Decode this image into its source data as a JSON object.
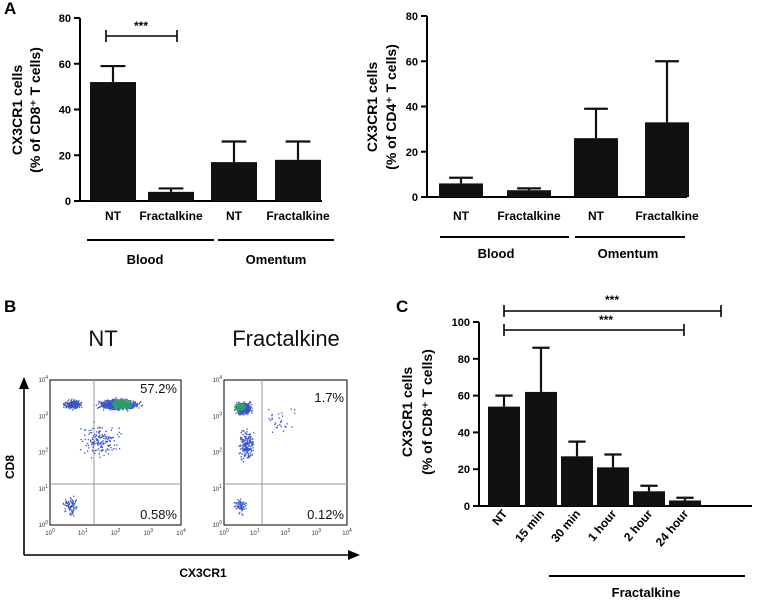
{
  "panel_labels": [
    "A",
    "B",
    "C"
  ],
  "chart_data": [
    {
      "id": "A-left",
      "type": "bar",
      "ylabel_line1": "CX3CR1 cells",
      "ylabel_line2": "(% of CD8⁺ T cells)",
      "ylim": [
        0,
        80
      ],
      "yticks": [
        "0",
        "20",
        "40",
        "60",
        "80"
      ],
      "categories": [
        "NT",
        "Fractalkine",
        "NT",
        "Fractalkine"
      ],
      "values": [
        52,
        4,
        17,
        18
      ],
      "errors": [
        7,
        1.5,
        9,
        8
      ],
      "groups": [
        "Blood",
        "Omentum"
      ],
      "significance": "***"
    },
    {
      "id": "A-right",
      "type": "bar",
      "ylabel_line1": "CX3CR1 cells",
      "ylabel_line2": "(% of CD4⁺ T cells)",
      "ylim": [
        0,
        80
      ],
      "yticks": [
        "0",
        "20",
        "40",
        "60",
        "80"
      ],
      "categories": [
        "NT",
        "Fractalkine",
        "NT",
        "Fractalkine"
      ],
      "values": [
        6,
        3,
        26,
        33
      ],
      "errors": [
        2.5,
        0.8,
        13,
        27
      ],
      "groups": [
        "Blood",
        "Omentum"
      ]
    },
    {
      "id": "C",
      "type": "bar",
      "ylabel_line1": "CX3CR1 cells",
      "ylabel_line2": "(% of CD8⁺ T cells)",
      "ylim": [
        0,
        100
      ],
      "yticks": [
        "0",
        "20",
        "40",
        "60",
        "80",
        "100"
      ],
      "categories": [
        "NT",
        "15 min",
        "30 min",
        "1 hour",
        "2 hour",
        "24 hour"
      ],
      "values": [
        54,
        62,
        27,
        21,
        8,
        3
      ],
      "errors": [
        6,
        24,
        8,
        7,
        3,
        1.5
      ],
      "group": "Fractalkine",
      "significance": [
        "***",
        "***"
      ]
    }
  ],
  "flow": {
    "titles": [
      "NT",
      "Fractalkine"
    ],
    "upper_right_pct": [
      "57.2%",
      "1.7%"
    ],
    "lower_right_pct": [
      "0.58%",
      "0.12%"
    ],
    "y_axis": "CD8",
    "x_axis": "CX3CR1",
    "tick_bases": [
      "10",
      "10",
      "10",
      "10",
      "10"
    ],
    "tick_exps": [
      "0",
      "1",
      "2",
      "3",
      "4"
    ],
    "dot_color": "#3a55c8",
    "density_color": "#2fb24a"
  },
  "colors": {
    "bar": "#111111",
    "axis": "#000000",
    "gate": "#999999"
  }
}
